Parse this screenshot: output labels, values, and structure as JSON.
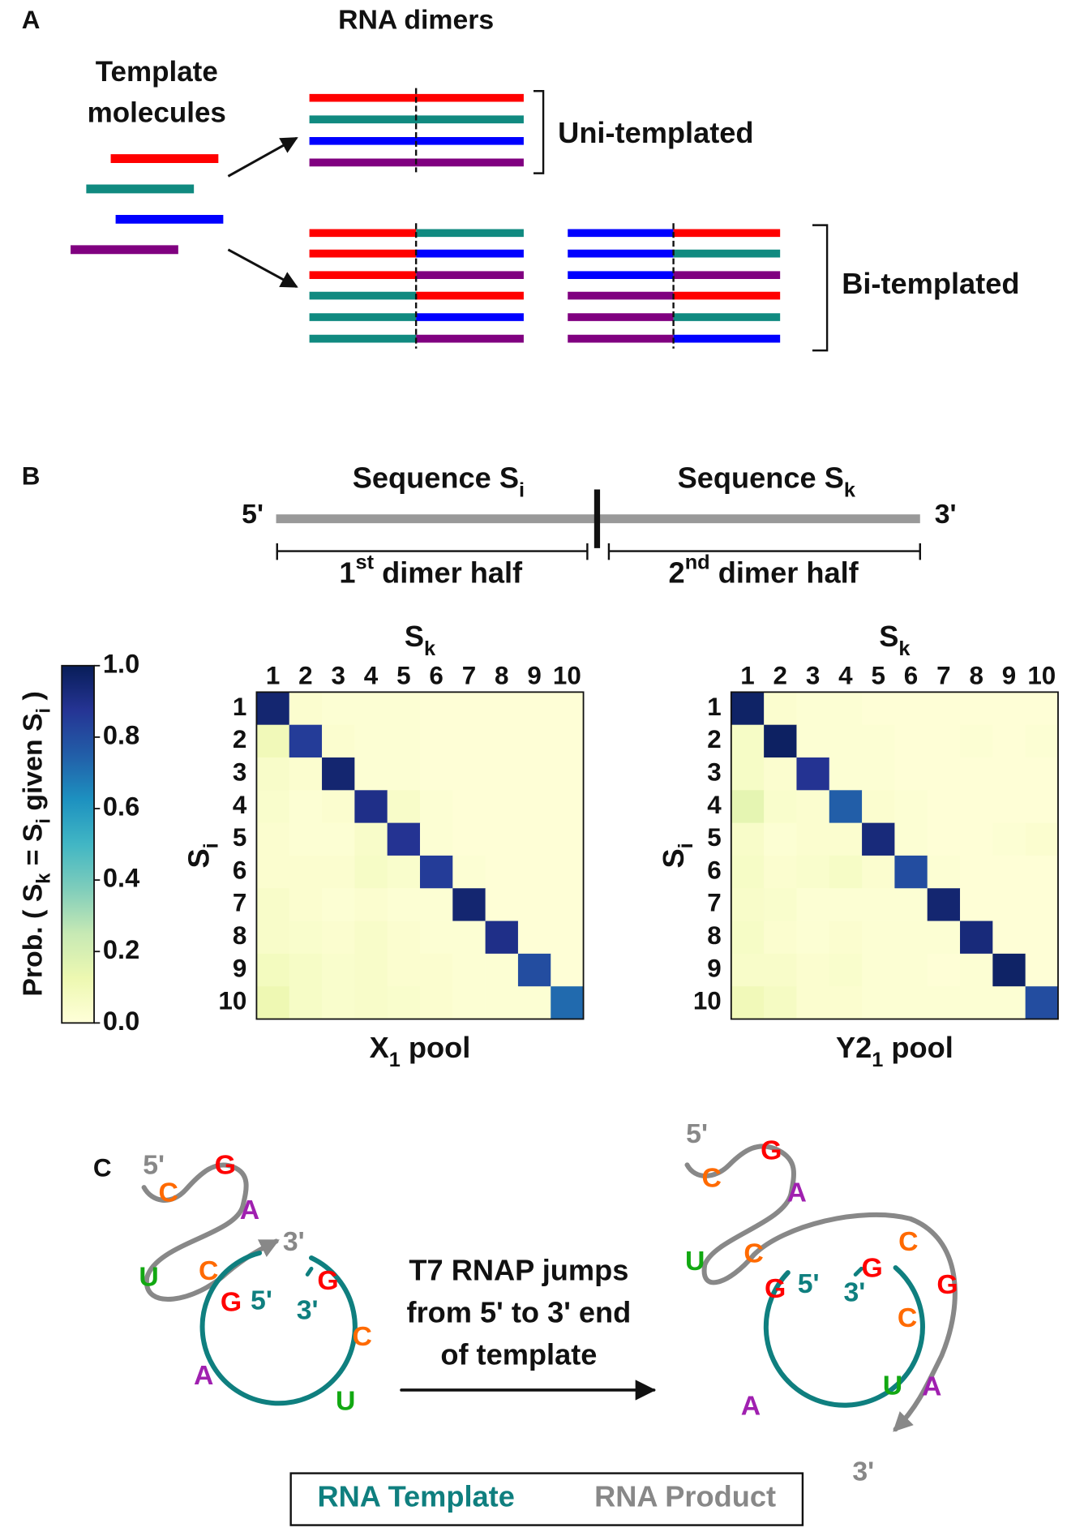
{
  "panel_labels": [
    "A",
    "B",
    "C"
  ],
  "panel_a": {
    "title": "RNA dimers",
    "template_label": [
      "Template",
      "molecules"
    ],
    "uni_label": "Uni-templated",
    "bi_label": "Bi-templated"
  },
  "panel_b": {
    "left_seq": [
      {
        "text": "Sequence S"
      },
      {
        "text": "i",
        "shift": "sub"
      }
    ],
    "right_seq": [
      {
        "text": "Sequence S"
      },
      {
        "text": "k",
        "shift": "sub"
      }
    ],
    "five_prime": "5'",
    "three_prime": "3'",
    "first_half": [
      {
        "text": "1"
      },
      {
        "text": "st",
        "shift": "sup"
      },
      {
        "text": " dimer half"
      }
    ],
    "second_half": [
      {
        "text": "2"
      },
      {
        "text": "nd",
        "shift": "sup"
      },
      {
        "text": " dimer half"
      }
    ]
  },
  "colorbar": {
    "label": [
      {
        "text": "Prob. ( S"
      },
      {
        "text": "k",
        "shift": "sub"
      },
      {
        "text": " = S"
      },
      {
        "text": "i",
        "shift": "sub"
      },
      {
        "text": " given S"
      },
      {
        "text": "i",
        "shift": "sub"
      },
      {
        "text": " )"
      }
    ],
    "lim": [
      0,
      1
    ],
    "ticks": [
      {
        "value": 0,
        "label": "0.0"
      },
      0.2,
      0.4,
      0.6,
      0.8,
      {
        "value": 1,
        "label": "1.0"
      }
    ]
  },
  "chart_data": [
    {
      "type": "heatmap",
      "title": [
        {
          "text": "X"
        },
        {
          "text": "1",
          "shift": "sub"
        },
        {
          "text": " pool"
        }
      ],
      "x_label": [
        {
          "text": "S"
        },
        {
          "text": "k",
          "shift": "sub"
        }
      ],
      "y_label": [
        {
          "text": "S"
        },
        {
          "text": "i",
          "shift": "sub"
        }
      ],
      "colormap": "YlGnBu",
      "x": [
        1,
        2,
        3,
        4,
        5,
        6,
        7,
        8,
        9,
        10
      ],
      "y": [
        1,
        2,
        3,
        4,
        5,
        6,
        7,
        8,
        9,
        10
      ],
      "values": [
        [
          0.95,
          0.03,
          0.02,
          0.02,
          0.02,
          0.01,
          0.01,
          0.01,
          0.01,
          0.01
        ],
        [
          0.1,
          0.85,
          0.03,
          0.02,
          0.02,
          0.01,
          0.01,
          0.01,
          0.01,
          0.01
        ],
        [
          0.05,
          0.03,
          0.95,
          0.02,
          0.02,
          0.01,
          0.01,
          0.01,
          0.01,
          0.01
        ],
        [
          0.04,
          0.02,
          0.03,
          0.9,
          0.05,
          0.02,
          0.01,
          0.01,
          0.01,
          0.01
        ],
        [
          0.03,
          0.02,
          0.02,
          0.05,
          0.88,
          0.02,
          0.01,
          0.01,
          0.01,
          0.01
        ],
        [
          0.03,
          0.03,
          0.03,
          0.06,
          0.04,
          0.85,
          0.02,
          0.01,
          0.01,
          0.01
        ],
        [
          0.05,
          0.03,
          0.02,
          0.03,
          0.02,
          0.02,
          0.95,
          0.01,
          0.01,
          0.01
        ],
        [
          0.05,
          0.04,
          0.03,
          0.05,
          0.03,
          0.02,
          0.02,
          0.9,
          0.01,
          0.01
        ],
        [
          0.08,
          0.06,
          0.04,
          0.05,
          0.03,
          0.03,
          0.02,
          0.02,
          0.8,
          0.01
        ],
        [
          0.12,
          0.06,
          0.04,
          0.05,
          0.04,
          0.03,
          0.02,
          0.02,
          0.02,
          0.72
        ]
      ]
    },
    {
      "type": "heatmap",
      "title": [
        {
          "text": "Y2"
        },
        {
          "text": "1",
          "shift": "sub"
        },
        {
          "text": " pool"
        }
      ],
      "x_label": [
        {
          "text": "S"
        },
        {
          "text": "k",
          "shift": "sub"
        }
      ],
      "y_label": [
        {
          "text": "S"
        },
        {
          "text": "i",
          "shift": "sub"
        }
      ],
      "colormap": "YlGnBu",
      "x": [
        1,
        2,
        3,
        4,
        5,
        6,
        7,
        8,
        9,
        10
      ],
      "y": [
        1,
        2,
        3,
        4,
        5,
        6,
        7,
        8,
        9,
        10
      ],
      "values": [
        [
          0.97,
          0.03,
          0.02,
          0.02,
          0.01,
          0.01,
          0.01,
          0.01,
          0.01,
          0.01
        ],
        [
          0.06,
          0.98,
          0.02,
          0.02,
          0.02,
          0.01,
          0.01,
          0.02,
          0.01,
          0.02
        ],
        [
          0.06,
          0.03,
          0.88,
          0.02,
          0.02,
          0.01,
          0.01,
          0.01,
          0.01,
          0.01
        ],
        [
          0.15,
          0.04,
          0.03,
          0.75,
          0.03,
          0.02,
          0.01,
          0.01,
          0.01,
          0.01
        ],
        [
          0.05,
          0.02,
          0.03,
          0.03,
          0.93,
          0.02,
          0.01,
          0.01,
          0.02,
          0.03
        ],
        [
          0.06,
          0.03,
          0.04,
          0.06,
          0.03,
          0.8,
          0.02,
          0.01,
          0.01,
          0.01
        ],
        [
          0.05,
          0.04,
          0.02,
          0.02,
          0.02,
          0.02,
          0.95,
          0.01,
          0.01,
          0.01
        ],
        [
          0.06,
          0.03,
          0.02,
          0.03,
          0.02,
          0.02,
          0.02,
          0.93,
          0.01,
          0.01
        ],
        [
          0.05,
          0.05,
          0.03,
          0.04,
          0.02,
          0.02,
          0.01,
          0.02,
          0.97,
          0.01
        ],
        [
          0.1,
          0.07,
          0.03,
          0.03,
          0.02,
          0.02,
          0.02,
          0.02,
          0.02,
          0.8
        ]
      ]
    }
  ],
  "panel_c": {
    "left_letters": [
      "5'",
      "C",
      "G",
      "A",
      "3'",
      "U",
      "C",
      "G",
      "5'",
      "G",
      "3'",
      "C",
      "A",
      "U"
    ],
    "right_letters": [
      "5'",
      "C",
      "G",
      "A",
      "U",
      "C",
      "G",
      "5'",
      "G",
      "3'",
      "C",
      "C",
      "G",
      "A",
      "U",
      "A",
      "3'"
    ],
    "caption": [
      "T7 RNAP jumps",
      "from 5' to 3' end",
      "of template"
    ],
    "legend": [
      "RNA Template",
      "RNA Product"
    ]
  }
}
